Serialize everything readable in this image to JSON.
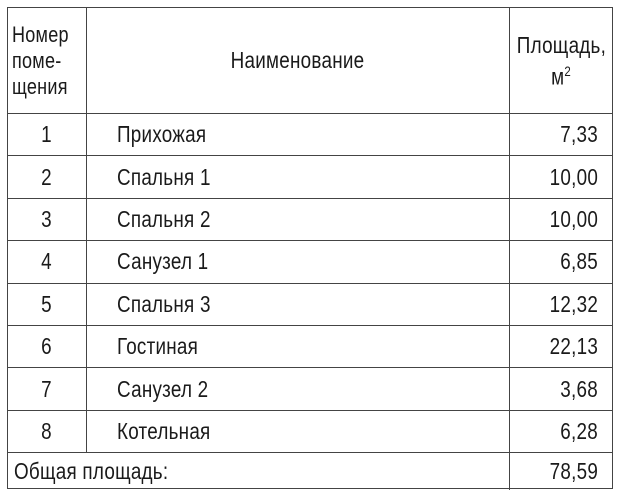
{
  "header": {
    "number": [
      "Номер",
      "поме-",
      "щения"
    ],
    "name": "Наименование",
    "area": "Площадь,",
    "area_unit": "м",
    "area_unit_exp": "2"
  },
  "rows": [
    {
      "num": "1",
      "name": "Прихожая",
      "area": "7,33"
    },
    {
      "num": "2",
      "name": "Спальня 1",
      "area": "10,00"
    },
    {
      "num": "3",
      "name": "Спальня 2",
      "area": "10,00"
    },
    {
      "num": "4",
      "name": "Санузел 1",
      "area": "6,85"
    },
    {
      "num": "5",
      "name": "Спальня 3",
      "area": "12,32"
    },
    {
      "num": "6",
      "name": "Гостиная",
      "area": "22,13"
    },
    {
      "num": "7",
      "name": "Санузел 2",
      "area": "3,68"
    },
    {
      "num": "8",
      "name": "Котельная",
      "area": "6,28"
    }
  ],
  "total": {
    "label": "Общая площадь:",
    "value": "78,59"
  }
}
